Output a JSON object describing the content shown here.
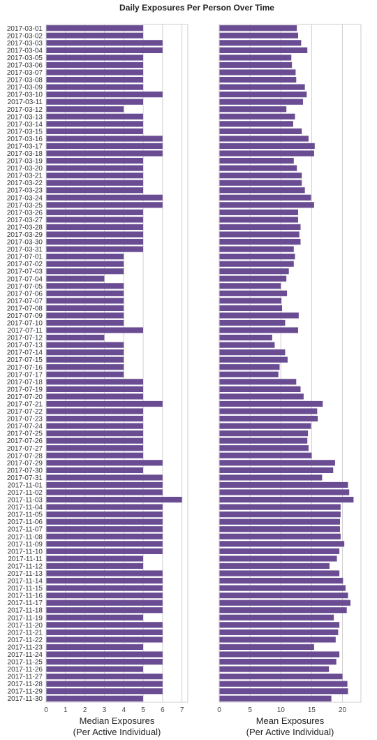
{
  "chart_data": {
    "title": "Daily Exposures Per Person Over Time",
    "type": "bar",
    "orientation": "horizontal",
    "grid": true,
    "bar_color": "#6a4c93",
    "categories": [
      "2017-03-01",
      "2017-03-02",
      "2017-03-03",
      "2017-03-04",
      "2017-03-05",
      "2017-03-06",
      "2017-03-07",
      "2017-03-08",
      "2017-03-09",
      "2017-03-10",
      "2017-03-11",
      "2017-03-12",
      "2017-03-13",
      "2017-03-14",
      "2017-03-15",
      "2017-03-16",
      "2017-03-17",
      "2017-03-18",
      "2017-03-19",
      "2017-03-20",
      "2017-03-21",
      "2017-03-22",
      "2017-03-23",
      "2017-03-24",
      "2017-03-25",
      "2017-03-26",
      "2017-03-27",
      "2017-03-28",
      "2017-03-29",
      "2017-03-30",
      "2017-03-31",
      "2017-07-01",
      "2017-07-02",
      "2017-07-03",
      "2017-07-04",
      "2017-07-05",
      "2017-07-06",
      "2017-07-07",
      "2017-07-08",
      "2017-07-09",
      "2017-07-10",
      "2017-07-11",
      "2017-07-12",
      "2017-07-13",
      "2017-07-14",
      "2017-07-15",
      "2017-07-16",
      "2017-07-17",
      "2017-07-18",
      "2017-07-19",
      "2017-07-20",
      "2017-07-21",
      "2017-07-22",
      "2017-07-23",
      "2017-07-24",
      "2017-07-25",
      "2017-07-26",
      "2017-07-27",
      "2017-07-28",
      "2017-07-29",
      "2017-07-30",
      "2017-07-31",
      "2017-11-01",
      "2017-11-02",
      "2017-11-03",
      "2017-11-04",
      "2017-11-05",
      "2017-11-06",
      "2017-11-07",
      "2017-11-08",
      "2017-11-09",
      "2017-11-10",
      "2017-11-11",
      "2017-11-12",
      "2017-11-13",
      "2017-11-14",
      "2017-11-15",
      "2017-11-16",
      "2017-11-17",
      "2017-11-18",
      "2017-11-19",
      "2017-11-20",
      "2017-11-21",
      "2017-11-22",
      "2017-11-23",
      "2017-11-24",
      "2017-11-25",
      "2017-11-26",
      "2017-11-27",
      "2017-11-28",
      "2017-11-29",
      "2017-11-30"
    ],
    "panels": [
      {
        "xlabel": [
          "Median Exposures",
          "(Per Active Individual)"
        ],
        "xlim": [
          0,
          7.3
        ],
        "xticks": [
          0,
          1,
          2,
          3,
          4,
          5,
          6,
          7
        ],
        "values": [
          5,
          5,
          6,
          6,
          5,
          5,
          5,
          5,
          5,
          6,
          5,
          4,
          5,
          5,
          5,
          6,
          6,
          6,
          5,
          5,
          5,
          5,
          5,
          6,
          6,
          5,
          5,
          5,
          5,
          5,
          5,
          4,
          4,
          4,
          3,
          4,
          4,
          4,
          4,
          4,
          4,
          5,
          3,
          4,
          4,
          4,
          4,
          4,
          5,
          5,
          5,
          6,
          5,
          5,
          5,
          5,
          5,
          5,
          5,
          6,
          5,
          6,
          6,
          6,
          7,
          6,
          6,
          6,
          6,
          6,
          6,
          6,
          5,
          5,
          6,
          6,
          6,
          6,
          6,
          6,
          5,
          6,
          6,
          6,
          5,
          6,
          6,
          5,
          6,
          6,
          6,
          5
        ]
      },
      {
        "xlabel": [
          "Mean Exposures",
          "(Per Active Individual)"
        ],
        "xlim": [
          0,
          23
        ],
        "xticks": [
          0,
          5,
          10,
          15,
          20
        ],
        "values": [
          12.6,
          12.8,
          13.3,
          14.3,
          11.7,
          11.8,
          12.4,
          12.5,
          13.9,
          14.2,
          13.6,
          10.9,
          12.3,
          12.0,
          13.4,
          14.5,
          15.5,
          15.4,
          12.1,
          12.6,
          13.4,
          13.4,
          13.9,
          14.9,
          15.4,
          12.8,
          12.8,
          13.2,
          13.0,
          13.2,
          12.1,
          12.3,
          12.1,
          11.3,
          10.9,
          10.0,
          11.0,
          10.1,
          10.2,
          12.9,
          10.7,
          12.8,
          8.6,
          9.0,
          10.7,
          11.1,
          9.8,
          9.6,
          12.5,
          13.2,
          13.7,
          16.8,
          15.9,
          16.0,
          14.9,
          14.4,
          14.3,
          14.5,
          15.0,
          18.8,
          18.5,
          16.7,
          20.9,
          21.1,
          21.8,
          19.7,
          19.7,
          19.6,
          19.6,
          19.7,
          20.3,
          19.5,
          19.1,
          17.9,
          19.5,
          20.1,
          20.5,
          20.9,
          21.3,
          20.7,
          18.6,
          19.5,
          19.3,
          18.9,
          15.4,
          19.5,
          19.0,
          17.8,
          20.0,
          20.8,
          20.9,
          18.2
        ]
      }
    ]
  }
}
